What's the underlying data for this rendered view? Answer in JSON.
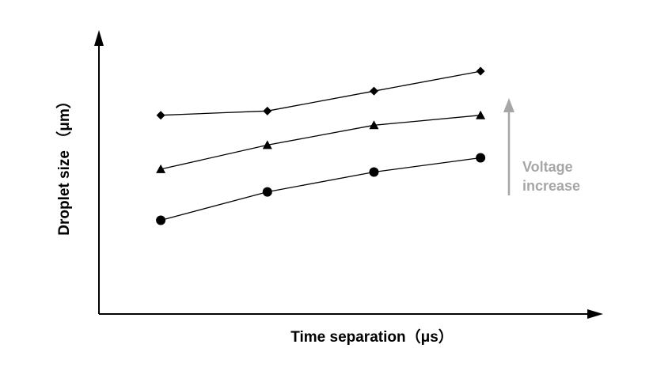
{
  "chart_data": {
    "type": "line",
    "title": "",
    "xlabel": "Time separation（μs）",
    "ylabel": "Droplet size （μm）",
    "x": [
      1,
      2,
      3,
      4
    ],
    "xlim": [
      0.42,
      5.15
    ],
    "ylim": [
      0,
      100
    ],
    "grid": false,
    "series": [
      {
        "marker": "diamond",
        "values": [
          70,
          71.5,
          78.5,
          85.5
        ]
      },
      {
        "marker": "triangle",
        "values": [
          51,
          59.5,
          66.5,
          70
        ]
      },
      {
        "marker": "circle",
        "values": [
          33,
          43,
          50,
          55
        ]
      }
    ],
    "annotations": {
      "arrow_label_line1": "Voltage",
      "arrow_label_line2": "increase",
      "arrow_direction": "up",
      "color": "#a6a6a6"
    }
  }
}
